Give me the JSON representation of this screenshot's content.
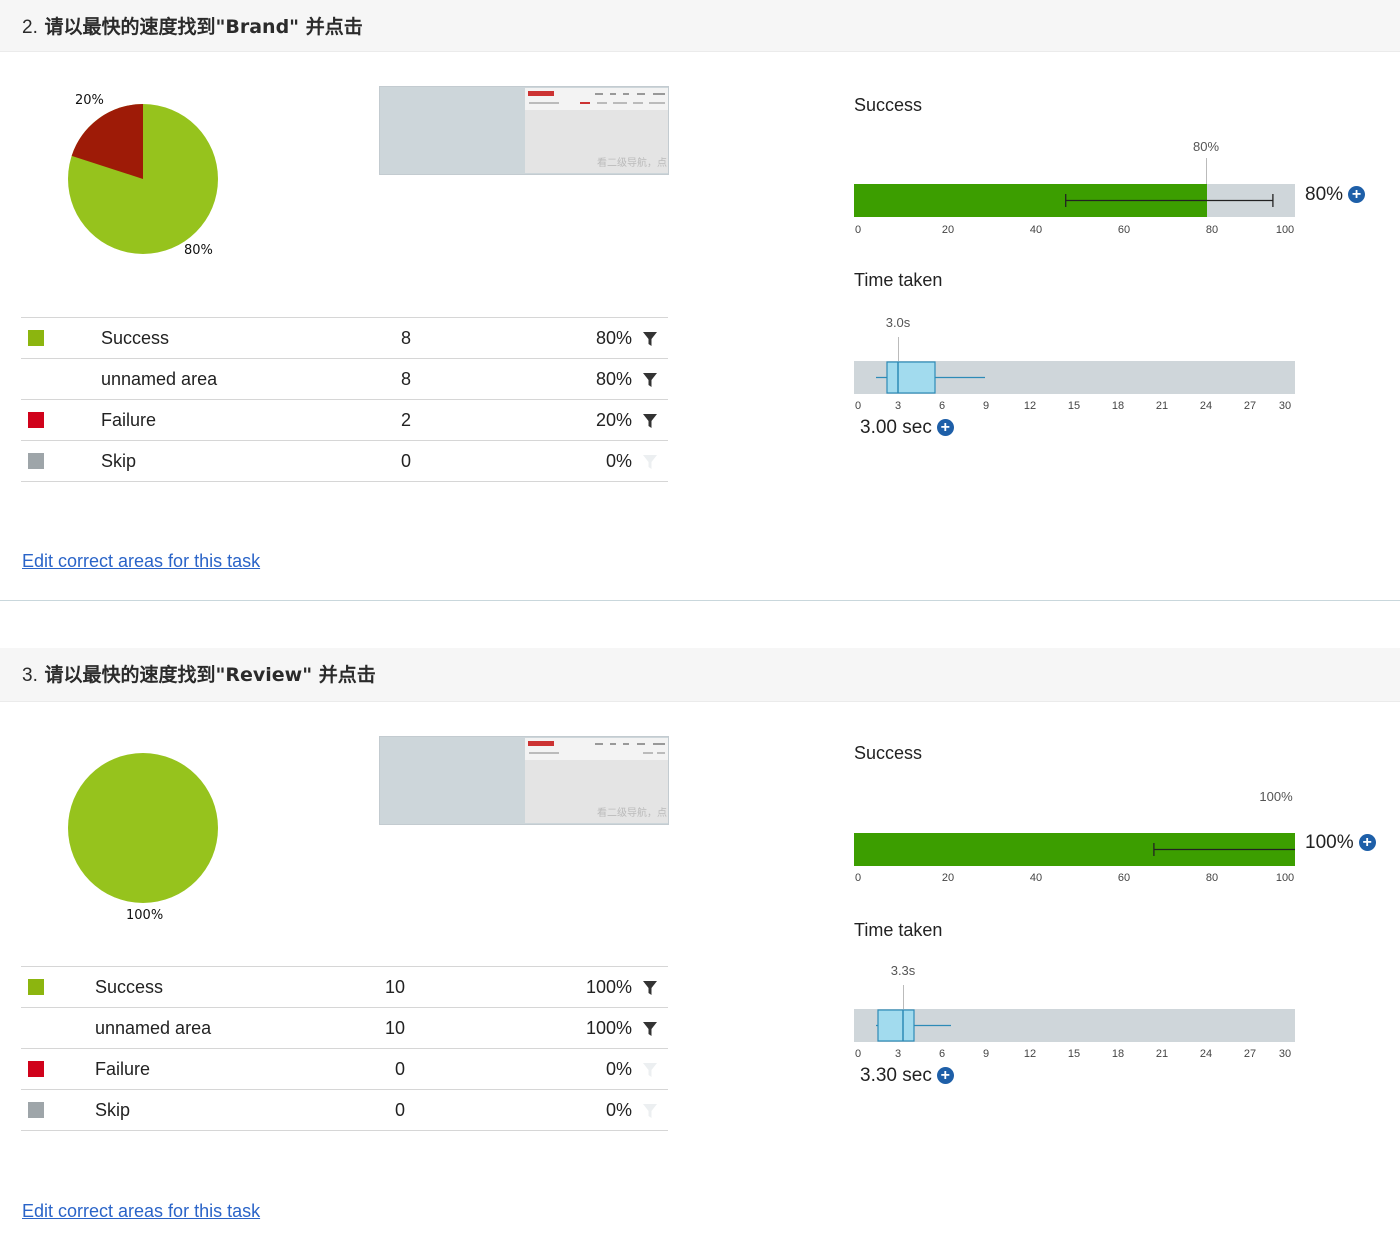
{
  "colors": {
    "success": "#96c31d",
    "failure_pie": "#9e1b07",
    "failure": "#d0021b",
    "skip": "#9ea5a9",
    "bar": "#3c9e00",
    "track": "#cfd6da",
    "box": "#a2dbee",
    "link": "#2a64c8"
  },
  "tasks": [
    {
      "number": "2.",
      "title": "请以最快的速度找到\"Brand\" 并点击",
      "pie": {
        "success_pct": 80,
        "failure_pct": 20,
        "label_success": "80%",
        "label_failure": "20%"
      },
      "thumbnail": {
        "watermark": "看二级导航，点"
      },
      "rows": [
        {
          "name": "Success",
          "count": "8",
          "pct": "80%",
          "swatch": "success",
          "filter": true
        },
        {
          "name": "unnamed area",
          "count": "8",
          "pct": "80%",
          "swatch": "",
          "filter": true
        },
        {
          "name": "Failure",
          "count": "2",
          "pct": "20%",
          "swatch": "failure",
          "filter": true
        },
        {
          "name": "Skip",
          "count": "0",
          "pct": "0%",
          "swatch": "skip",
          "filter": false
        }
      ],
      "edit_link": "Edit correct areas for this task",
      "success": {
        "label": "Success",
        "value_pct": 80,
        "marker_label": "80%",
        "display": "80%",
        "ci": [
          48,
          95
        ],
        "ticks": [
          "0",
          "20",
          "40",
          "60",
          "80",
          "100"
        ]
      },
      "time": {
        "label": "Time taken",
        "median": 3.0,
        "marker_label": "3.0s",
        "display": "3.00 sec",
        "box": [
          1.5,
          3.0,
          5.5
        ],
        "whisker": [
          1.0,
          10.5
        ],
        "ticks": [
          "0",
          "3",
          "6",
          "9",
          "12",
          "15",
          "18",
          "21",
          "24",
          "27",
          "30"
        ],
        "max": 30
      }
    },
    {
      "number": "3.",
      "title": "请以最快的速度找到\"Review\" 并点击",
      "pie": {
        "success_pct": 100,
        "failure_pct": 0,
        "label_success": "100%",
        "label_failure": ""
      },
      "thumbnail": {
        "watermark": "看二级导航，点"
      },
      "rows": [
        {
          "name": "Success",
          "count": "10",
          "pct": "100%",
          "swatch": "success",
          "filter": true
        },
        {
          "name": "unnamed area",
          "count": "10",
          "pct": "100%",
          "swatch": "",
          "filter": true
        },
        {
          "name": "Failure",
          "count": "0",
          "pct": "0%",
          "swatch": "failure",
          "filter": false
        },
        {
          "name": "Skip",
          "count": "0",
          "pct": "0%",
          "swatch": "skip",
          "filter": false
        }
      ],
      "edit_link": "Edit correct areas for this task",
      "success": {
        "label": "Success",
        "value_pct": 100,
        "marker_label": "100%",
        "display": "100%",
        "ci": [
          68,
          100
        ],
        "ticks": [
          "0",
          "20",
          "40",
          "60",
          "80",
          "100"
        ]
      },
      "time": {
        "label": "Time taken",
        "median": 3.3,
        "marker_label": "3.3s",
        "display": "3.30 sec",
        "box": [
          1.6,
          3.3,
          4.1
        ],
        "whisker": [
          1.5,
          6.6
        ],
        "ticks": [
          "0",
          "3",
          "6",
          "9",
          "12",
          "15",
          "18",
          "21",
          "24",
          "27",
          "30"
        ],
        "max": 30
      }
    }
  ]
}
